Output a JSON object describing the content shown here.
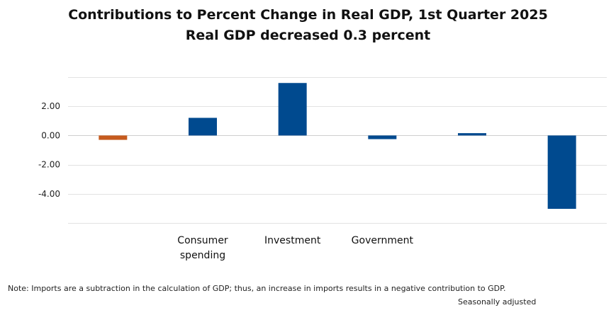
{
  "chart_data": {
    "type": "bar",
    "title": "Contributions to Percent Change in Real GDP, 1st Quarter 2025",
    "subtitle": "Real GDP decreased 0.3 percent",
    "xlabel": "",
    "ylabel": "",
    "categories": [
      "",
      "Consumer spending",
      "Investment",
      "Government",
      "",
      ""
    ],
    "values": [
      -0.3,
      1.21,
      3.6,
      -0.25,
      0.16,
      -5.03
    ],
    "bar_colors": [
      "#c65b1e",
      "#004a8f",
      "#004a8f",
      "#004a8f",
      "#004a8f",
      "#004a8f"
    ],
    "y_ticks": [
      "2.00",
      "0.00",
      "-2.00",
      "-4.00"
    ],
    "ylim": [
      -6,
      4
    ],
    "grid": true,
    "legend": "none"
  },
  "note": "Note: Imports are a subtraction in the calculation of GDP; thus, an increase in imports results in a negative contribution to GDP.",
  "source": "Seasonally adjusted"
}
